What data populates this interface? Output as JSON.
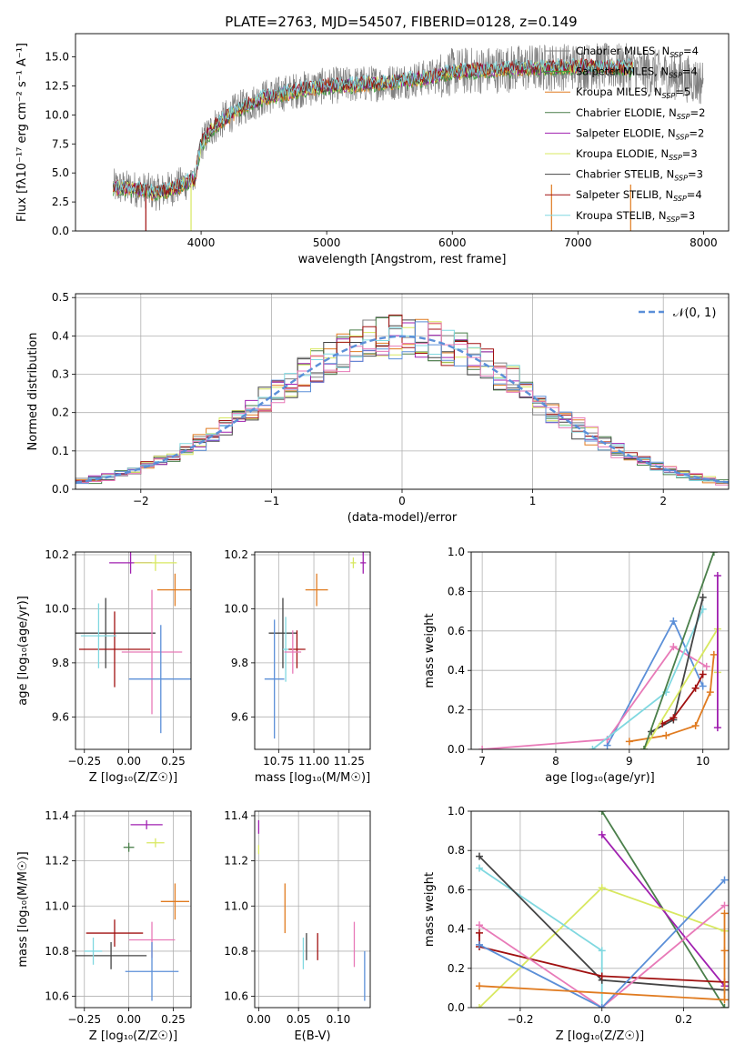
{
  "title": "PLATE=2763, MJD=54507, FIBERID=0128, z=0.149",
  "colors": {
    "chabrier_miles": "#808080",
    "salpeter_miles": "#3a9f3a",
    "kroupa_miles": "#e07b20",
    "chabrier_elodie": "#4a7f4a",
    "salpeter_elodie": "#a020b0",
    "kroupa_elodie": "#d8e860",
    "chabrier_stelib": "#444444",
    "salpeter_stelib": "#a01010",
    "kroupa_stelib": "#80d8e0",
    "blue": "#5b8fd8",
    "pink": "#e87ab8",
    "gauss": "#5b8fd8"
  },
  "chart_data": [
    {
      "id": "spectrum",
      "type": "line",
      "title": "PLATE=2763, MJD=54507, FIBERID=0128, z=0.149",
      "xlabel": "wavelength [Angstrom, rest frame]",
      "ylabel": "Flux [fλ10⁻¹⁷ erg cm⁻² s⁻¹ A⁻¹]",
      "xlim": [
        3000,
        8200
      ],
      "ylim": [
        0,
        17
      ],
      "xticks": [
        "4000",
        "5000",
        "6000",
        "7000",
        "8000"
      ],
      "yticks": [
        "0.0",
        "2.5",
        "5.0",
        "7.5",
        "10.0",
        "12.5",
        "15.0"
      ],
      "legend_position": "upper right",
      "series": [
        {
          "name": "Chabrier MILES, N",
          "sub": "SSP",
          "tail": "=4",
          "color_key": "chabrier_miles"
        },
        {
          "name": "Salpeter MILES, N",
          "sub": "SSP",
          "tail": "=4",
          "color_key": "salpeter_miles"
        },
        {
          "name": "Kroupa MILES, N",
          "sub": "SSP",
          "tail": "=5",
          "color_key": "kroupa_miles"
        },
        {
          "name": "Chabrier ELODIE, N",
          "sub": "SSP",
          "tail": "=2",
          "color_key": "chabrier_elodie"
        },
        {
          "name": "Salpeter ELODIE, N",
          "sub": "SSP",
          "tail": "=2",
          "color_key": "salpeter_elodie"
        },
        {
          "name": "Kroupa ELODIE, N",
          "sub": "SSP",
          "tail": "=3",
          "color_key": "kroupa_elodie"
        },
        {
          "name": "Chabrier STELIB, N",
          "sub": "SSP",
          "tail": "=3",
          "color_key": "chabrier_stelib"
        },
        {
          "name": "Salpeter STELIB, N",
          "sub": "SSP",
          "tail": "=4",
          "color_key": "salpeter_stelib"
        },
        {
          "name": "Kroupa STELIB, N",
          "sub": "SSP",
          "tail": "=3",
          "color_key": "kroupa_stelib"
        }
      ],
      "continuum": [
        [
          3300,
          3.8
        ],
        [
          3500,
          3.6
        ],
        [
          3650,
          3.3
        ],
        [
          3800,
          3.8
        ],
        [
          3950,
          4.5
        ],
        [
          4000,
          7.5
        ],
        [
          4100,
          9
        ],
        [
          4300,
          10.5
        ],
        [
          4500,
          11.5
        ],
        [
          4800,
          12.2
        ],
        [
          5000,
          12.5
        ],
        [
          5200,
          12.6
        ],
        [
          5500,
          12.8
        ],
        [
          5800,
          13.2
        ],
        [
          6000,
          13.7
        ],
        [
          6300,
          13.9
        ],
        [
          6500,
          14.0
        ],
        [
          6800,
          14.1
        ],
        [
          7000,
          14.2
        ],
        [
          7400,
          14.1
        ],
        [
          7500,
          13.8
        ],
        [
          7800,
          13.3
        ],
        [
          8000,
          12.8
        ]
      ]
    },
    {
      "id": "residuals",
      "type": "line",
      "xlabel": "(data-model)/error",
      "ylabel": "Normed distribution",
      "xlim": [
        -2.5,
        2.5
      ],
      "ylim": [
        0,
        0.51
      ],
      "xticks": [
        "−2",
        "−1",
        "0",
        "1",
        "2"
      ],
      "yticks": [
        "0.0",
        "0.1",
        "0.2",
        "0.3",
        "0.4",
        "0.5"
      ],
      "legend_label": "𝒩(0, 1)",
      "legend_position": "upper right",
      "bins_from": -2.5,
      "bin_width": 0.1
    },
    {
      "id": "age_vs_Z",
      "type": "scatter",
      "xlabel": "Z [log₁₀(Z/Z☉)]",
      "ylabel": "age  [log₁₀(age/yr)]",
      "xlim": [
        -0.3,
        0.35
      ],
      "ylim": [
        9.48,
        10.21
      ],
      "xticks": [
        "−0.25",
        "0.00",
        "0.25"
      ],
      "yticks": [
        "9.6",
        "9.8",
        "10.0",
        "10.2"
      ],
      "points": [
        {
          "x": 0.01,
          "y": 10.17,
          "xerr": 0.12,
          "yerr": 0.04,
          "color_key": "salpeter_elodie"
        },
        {
          "x": 0.15,
          "y": 10.17,
          "xerr": 0.12,
          "yerr": 0.03,
          "color_key": "kroupa_elodie"
        },
        {
          "x": 0.26,
          "y": 10.07,
          "xerr": 0.1,
          "yerr": 0.06,
          "color_key": "kroupa_miles"
        },
        {
          "x": -0.13,
          "y": 9.91,
          "xerr": 0.28,
          "yerr": 0.13,
          "color_key": "chabrier_stelib"
        },
        {
          "x": -0.08,
          "y": 9.85,
          "xerr": 0.2,
          "yerr": 0.14,
          "color_key": "salpeter_stelib"
        },
        {
          "x": -0.17,
          "y": 9.9,
          "xerr": 0.1,
          "yerr": 0.12,
          "color_key": "kroupa_stelib"
        },
        {
          "x": 0.13,
          "y": 9.84,
          "xerr": 0.17,
          "yerr": 0.23,
          "color_key": "pink"
        },
        {
          "x": 0.18,
          "y": 9.74,
          "xerr": 0.18,
          "yerr": 0.2,
          "color_key": "blue"
        }
      ]
    },
    {
      "id": "age_vs_mass",
      "type": "scatter",
      "xlabel": "mass [log₁₀(M/M☉)]",
      "ylabel": "",
      "xlim": [
        10.58,
        11.4
      ],
      "ylim": [
        9.48,
        10.21
      ],
      "xticks": [
        "10.75",
        "11.00",
        "11.25"
      ],
      "yticks": [
        "9.6",
        "9.8",
        "10.0",
        "10.2"
      ],
      "points": [
        {
          "x": 11.35,
          "y": 10.17,
          "xerr": 0.02,
          "yerr": 0.04,
          "color_key": "salpeter_elodie"
        },
        {
          "x": 11.28,
          "y": 10.17,
          "xerr": 0.02,
          "yerr": 0.02,
          "color_key": "kroupa_elodie"
        },
        {
          "x": 11.02,
          "y": 10.07,
          "xerr": 0.08,
          "yerr": 0.06,
          "color_key": "kroupa_miles"
        },
        {
          "x": 10.78,
          "y": 9.91,
          "xerr": 0.1,
          "yerr": 0.13,
          "color_key": "chabrier_stelib"
        },
        {
          "x": 10.88,
          "y": 9.85,
          "xerr": 0.06,
          "yerr": 0.07,
          "color_key": "salpeter_stelib"
        },
        {
          "x": 10.8,
          "y": 9.85,
          "xerr": 0.02,
          "yerr": 0.12,
          "color_key": "kroupa_stelib"
        },
        {
          "x": 10.85,
          "y": 9.84,
          "xerr": 0.06,
          "yerr": 0.08,
          "color_key": "pink"
        },
        {
          "x": 10.72,
          "y": 9.74,
          "xerr": 0.07,
          "yerr": 0.22,
          "color_key": "blue"
        }
      ]
    },
    {
      "id": "weight_vs_age",
      "type": "line",
      "xlabel": "age  [log₁₀(age/yr)]",
      "ylabel": "mass weight",
      "xlim": [
        6.85,
        10.35
      ],
      "ylim": [
        0,
        1
      ],
      "xticks": [
        "7",
        "8",
        "9",
        "10"
      ],
      "yticks": [
        "0.0",
        "0.2",
        "0.4",
        "0.6",
        "0.8",
        "1.0"
      ],
      "series": [
        {
          "color_key": "blue",
          "points": [
            [
              8.7,
              0.02
            ],
            [
              9.6,
              0.65
            ],
            [
              10.0,
              0.32
            ]
          ]
        },
        {
          "color_key": "pink",
          "points": [
            [
              7.0,
              0.0
            ],
            [
              8.7,
              0.05
            ],
            [
              9.6,
              0.52
            ],
            [
              10.05,
              0.42
            ]
          ]
        },
        {
          "color_key": "kroupa_stelib",
          "points": [
            [
              8.5,
              0.0
            ],
            [
              9.5,
              0.29
            ],
            [
              10.0,
              0.71
            ]
          ]
        },
        {
          "color_key": "chabrier_stelib",
          "points": [
            [
              9.3,
              0.09
            ],
            [
              9.6,
              0.15
            ],
            [
              10.0,
              0.77
            ]
          ]
        },
        {
          "color_key": "salpeter_stelib",
          "points": [
            [
              9.45,
              0.13
            ],
            [
              9.6,
              0.16
            ],
            [
              9.9,
              0.31
            ],
            [
              10.0,
              0.38
            ]
          ]
        },
        {
          "color_key": "kroupa_miles",
          "points": [
            [
              9.0,
              0.04
            ],
            [
              9.5,
              0.07
            ],
            [
              9.9,
              0.12
            ],
            [
              10.1,
              0.29
            ],
            [
              10.15,
              0.48
            ]
          ]
        },
        {
          "color_key": "kroupa_elodie",
          "points": [
            [
              9.2,
              0.0
            ],
            [
              10.2,
              0.61
            ],
            [
              10.2,
              0.39
            ]
          ]
        },
        {
          "color_key": "salpeter_elodie",
          "points": [
            [
              10.2,
              0.88
            ],
            [
              10.2,
              0.11
            ]
          ]
        },
        {
          "color_key": "chabrier_elodie",
          "points": [
            [
              9.2,
              0.0
            ],
            [
              10.15,
              1.0
            ]
          ]
        }
      ]
    },
    {
      "id": "mass_vs_Z",
      "type": "scatter",
      "xlabel": "Z [log₁₀(Z/Z☉)]",
      "ylabel": "mass [log₁₀(M/M☉)]",
      "xlim": [
        -0.3,
        0.35
      ],
      "ylim": [
        10.55,
        11.42
      ],
      "xticks": [
        "−0.25",
        "0.00",
        "0.25"
      ],
      "yticks": [
        "10.6",
        "10.8",
        "11.0",
        "11.2",
        "11.4"
      ],
      "points": [
        {
          "x": 0.1,
          "y": 11.36,
          "xerr": 0.09,
          "yerr": 0.02,
          "color_key": "salpeter_elodie"
        },
        {
          "x": 0.15,
          "y": 11.28,
          "xerr": 0.05,
          "yerr": 0.02,
          "color_key": "kroupa_elodie"
        },
        {
          "x": 0.0,
          "y": 11.26,
          "xerr": 0.03,
          "yerr": 0.02,
          "color_key": "chabrier_elodie"
        },
        {
          "x": 0.26,
          "y": 11.02,
          "xerr": 0.08,
          "yerr": 0.08,
          "color_key": "kroupa_miles"
        },
        {
          "x": -0.08,
          "y": 10.88,
          "xerr": 0.16,
          "yerr": 0.06,
          "color_key": "salpeter_stelib"
        },
        {
          "x": -0.1,
          "y": 10.78,
          "xerr": 0.2,
          "yerr": 0.06,
          "color_key": "chabrier_stelib"
        },
        {
          "x": -0.2,
          "y": 10.8,
          "xerr": 0.05,
          "yerr": 0.06,
          "color_key": "kroupa_stelib"
        },
        {
          "x": 0.13,
          "y": 10.85,
          "xerr": 0.13,
          "yerr": 0.08,
          "color_key": "pink"
        },
        {
          "x": 0.13,
          "y": 10.71,
          "xerr": 0.15,
          "yerr": 0.13,
          "color_key": "blue"
        }
      ]
    },
    {
      "id": "mass_vs_ebv",
      "type": "scatter",
      "xlabel": "E(B-V)",
      "ylabel": "",
      "xlim": [
        -0.005,
        0.14
      ],
      "ylim": [
        10.55,
        11.42
      ],
      "xticks": [
        "0.00",
        "0.05",
        "0.10"
      ],
      "yticks": [
        "10.6",
        "10.8",
        "11.0",
        "11.2",
        "11.4"
      ],
      "points": [
        {
          "x": 0.0,
          "y": 11.35,
          "xerr": 0,
          "yerr": 0.03,
          "color_key": "salpeter_elodie"
        },
        {
          "x": 0.0,
          "y": 11.25,
          "xerr": 0,
          "yerr": 0.02,
          "color_key": "kroupa_elodie"
        },
        {
          "x": 0.033,
          "y": 10.99,
          "xerr": 0,
          "yerr": 0.11,
          "color_key": "kroupa_miles"
        },
        {
          "x": 0.06,
          "y": 10.82,
          "xerr": 0,
          "yerr": 0.06,
          "color_key": "chabrier_stelib"
        },
        {
          "x": 0.074,
          "y": 10.82,
          "xerr": 0,
          "yerr": 0.06,
          "color_key": "salpeter_stelib"
        },
        {
          "x": 0.056,
          "y": 10.79,
          "xerr": 0,
          "yerr": 0.07,
          "color_key": "kroupa_stelib"
        },
        {
          "x": 0.12,
          "y": 10.83,
          "xerr": 0,
          "yerr": 0.1,
          "color_key": "pink"
        },
        {
          "x": 0.133,
          "y": 10.69,
          "xerr": 0,
          "yerr": 0.11,
          "color_key": "blue"
        }
      ]
    },
    {
      "id": "weight_vs_Z",
      "type": "line",
      "xlabel": "Z [log₁₀(Z/Z☉)]",
      "ylabel": "mass weight",
      "xlim": [
        -0.32,
        0.31
      ],
      "ylim": [
        0,
        1
      ],
      "xticks": [
        "−0.2",
        "0.0",
        "0.2"
      ],
      "yticks": [
        "0.0",
        "0.2",
        "0.4",
        "0.6",
        "0.8",
        "1.0"
      ],
      "series": [
        {
          "color_key": "chabrier_elodie",
          "points": [
            [
              0.0,
              1.0
            ],
            [
              0.3,
              0.0
            ]
          ]
        },
        {
          "color_key": "salpeter_elodie",
          "points": [
            [
              0.0,
              0.88
            ],
            [
              0.3,
              0.11
            ]
          ]
        },
        {
          "color_key": "kroupa_elodie",
          "points": [
            [
              -0.3,
              0.0
            ],
            [
              0.0,
              0.61
            ],
            [
              0.3,
              0.39
            ]
          ]
        },
        {
          "color_key": "kroupa_stelib",
          "points": [
            [
              -0.3,
              0.71
            ],
            [
              0.0,
              0.29
            ],
            [
              0.0,
              0.0
            ]
          ]
        },
        {
          "color_key": "chabrier_stelib",
          "points": [
            [
              -0.3,
              0.77
            ],
            [
              0.0,
              0.14
            ],
            [
              0.3,
              0.09
            ]
          ]
        },
        {
          "color_key": "salpeter_stelib",
          "points": [
            [
              -0.3,
              0.38
            ],
            [
              -0.3,
              0.31
            ],
            [
              0.0,
              0.16
            ],
            [
              0.3,
              0.13
            ]
          ]
        },
        {
          "color_key": "pink",
          "points": [
            [
              -0.3,
              0.42
            ],
            [
              0.0,
              0.0
            ],
            [
              0.3,
              0.52
            ]
          ]
        },
        {
          "color_key": "blue",
          "points": [
            [
              -0.3,
              0.32
            ],
            [
              0.0,
              0.0
            ],
            [
              0.3,
              0.65
            ]
          ]
        },
        {
          "color_key": "kroupa_miles",
          "points": [
            [
              -0.3,
              0.11
            ],
            [
              0.3,
              0.04
            ],
            [
              0.3,
              0.48
            ],
            [
              0.3,
              0.29
            ]
          ]
        }
      ]
    }
  ]
}
